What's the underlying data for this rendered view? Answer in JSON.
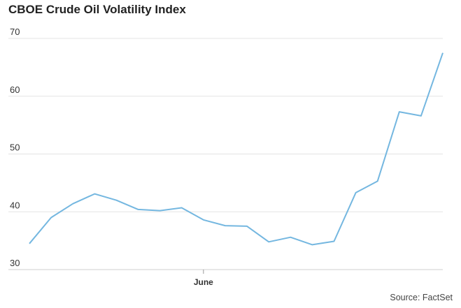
{
  "chart_data": {
    "type": "line",
    "title": "CBOE Crude Oil Volatility Index",
    "xlabel": "",
    "ylabel": "",
    "ylim": [
      30,
      70
    ],
    "yticks": [
      30,
      40,
      50,
      60,
      70
    ],
    "x_tick_labels": [
      {
        "label": "June",
        "index": 8
      }
    ],
    "grid": true,
    "series": [
      {
        "color": "#74b7e0",
        "values": [
          34.5,
          39.0,
          41.4,
          43.1,
          42.0,
          40.4,
          40.2,
          40.7,
          38.6,
          37.6,
          37.5,
          34.8,
          35.6,
          34.3,
          34.9,
          43.3,
          45.3,
          57.3,
          56.6,
          67.5
        ]
      }
    ]
  },
  "source": "Source: FactSet"
}
